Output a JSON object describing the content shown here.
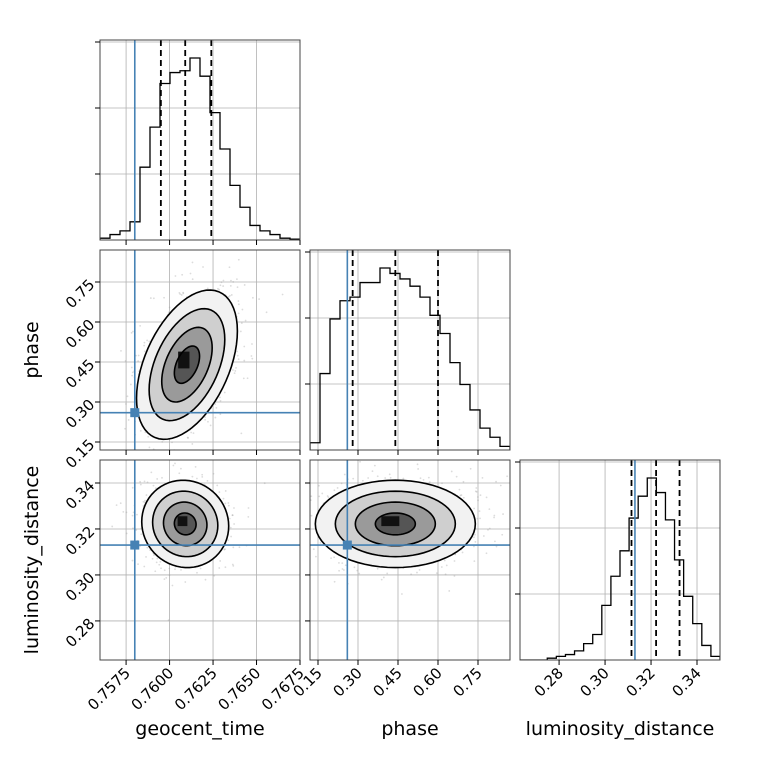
{
  "chart_data": {
    "type": "corner",
    "parameters": [
      {
        "key": "geocent_time",
        "label": "geocent_time",
        "range": [
          0.756,
          0.7675
        ],
        "ticks": [
          "0.7575",
          "0.7600",
          "0.7625",
          "0.7650",
          "0.7675"
        ],
        "tick_values": [
          0.7575,
          0.76,
          0.7625,
          0.765,
          0.7675
        ],
        "truth": 0.758,
        "quantiles": [
          0.7595,
          0.7609,
          0.7624
        ]
      },
      {
        "key": "phase",
        "label": "phase",
        "range": [
          0.12,
          0.87
        ],
        "ticks": [
          "0.15",
          "0.30",
          "0.45",
          "0.60",
          "0.75"
        ],
        "tick_values": [
          0.15,
          0.3,
          0.45,
          0.6,
          0.75
        ],
        "truth": 0.26,
        "quantiles": [
          0.28,
          0.44,
          0.6
        ]
      },
      {
        "key": "luminosity_distance",
        "label": "luminosity_distance",
        "range": [
          0.263,
          0.35
        ],
        "ticks": [
          "0.28",
          "0.30",
          "0.32",
          "0.34"
        ],
        "tick_values": [
          0.28,
          0.3,
          0.32,
          0.34
        ],
        "truth": 0.313,
        "quantiles": [
          0.3115,
          0.3222,
          0.3324
        ]
      }
    ],
    "histograms": {
      "geocent_time": [
        0.01,
        0.03,
        0.05,
        0.1,
        0.4,
        0.62,
        0.86,
        0.92,
        0.93,
        1.0,
        0.9,
        0.7,
        0.5,
        0.3,
        0.18,
        0.08,
        0.05,
        0.03,
        0.01,
        0.005
      ],
      "phase": [
        0.04,
        0.42,
        0.72,
        0.82,
        0.84,
        0.92,
        0.92,
        1.0,
        0.97,
        0.94,
        0.9,
        0.84,
        0.74,
        0.64,
        0.48,
        0.36,
        0.22,
        0.12,
        0.07,
        0.02
      ],
      "luminosity_distance": [
        0.0,
        0.0,
        0.0,
        0.01,
        0.02,
        0.03,
        0.05,
        0.09,
        0.14,
        0.3,
        0.46,
        0.6,
        0.78,
        0.9,
        1.0,
        0.92,
        0.77,
        0.55,
        0.35,
        0.2,
        0.08,
        0.02
      ]
    },
    "posterior_2d": {
      "phase_vs_geocent_time": {
        "center": [
          0.761,
          0.44
        ],
        "sigma": [
          0.00145,
          0.14
        ],
        "rho": 0.45
      },
      "luminosity_distance_vs_geocent_time": {
        "center": [
          0.7609,
          0.3222
        ],
        "sigma": [
          0.00125,
          0.0095
        ],
        "rho": -0.05
      },
      "luminosity_distance_vs_phase": {
        "center": [
          0.44,
          0.3222
        ],
        "sigma": [
          0.15,
          0.0095
        ],
        "rho": 0.0
      }
    },
    "truth_color": "#4682b4",
    "contour_levels_sigma": [
      0.5,
      1.0,
      1.5,
      2.0
    ],
    "grid": true
  }
}
